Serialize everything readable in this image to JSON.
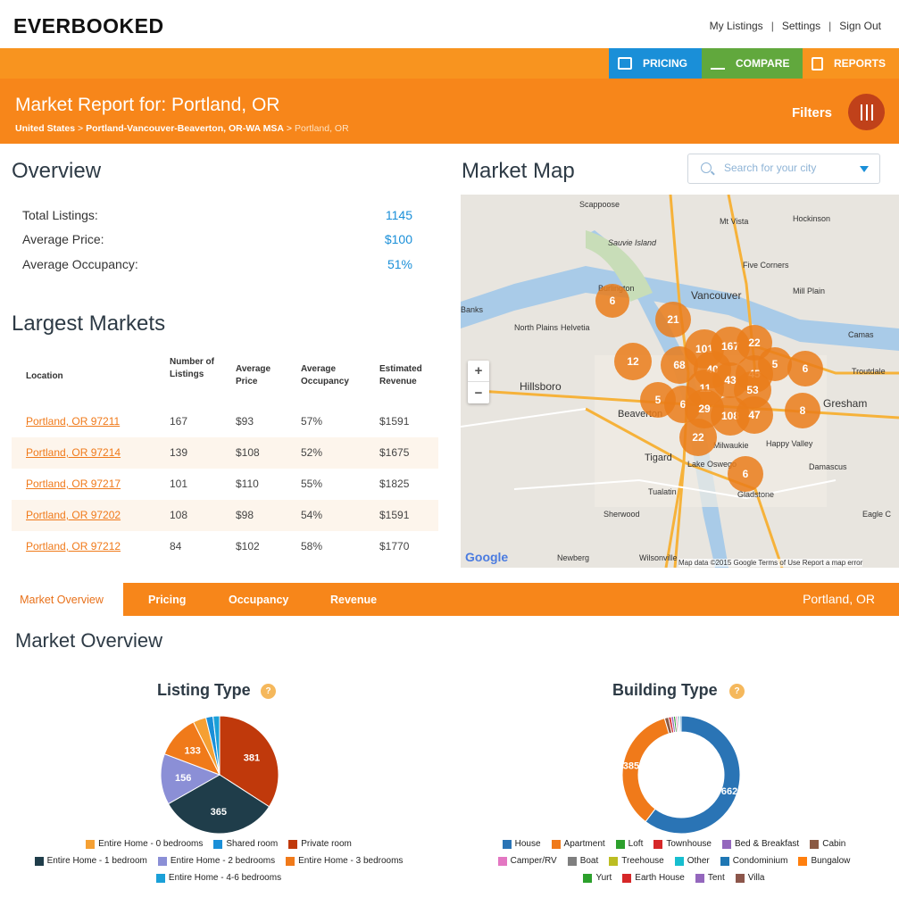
{
  "brand": "EVERBOOKED",
  "top_links": [
    "My Listings",
    "Settings",
    "Sign Out"
  ],
  "nav": {
    "pricing": "PRICING",
    "compare": "COMPARE",
    "reports": "REPORTS"
  },
  "header": {
    "title": "Market Report for: Portland, OR",
    "crumbs": [
      "United States",
      "Portland-Vancouver-Beaverton, OR-WA MSA",
      "Portland, OR"
    ],
    "filters": "Filters"
  },
  "overview": {
    "title": "Overview",
    "rows": [
      {
        "label": "Total Listings:",
        "value": "1145"
      },
      {
        "label": "Average Price:",
        "value": "$100"
      },
      {
        "label": "Average Occupancy:",
        "value": "51%"
      }
    ]
  },
  "largest": {
    "title": "Largest Markets",
    "headers": [
      "Location",
      "Number of Listings",
      "Average Price",
      "Average Occupancy",
      "Estimated Revenue"
    ],
    "rows": [
      [
        "Portland, OR 97211",
        "167",
        "$93",
        "57%",
        "$1591"
      ],
      [
        "Portland, OR 97214",
        "139",
        "$108",
        "52%",
        "$1675"
      ],
      [
        "Portland, OR 97217",
        "101",
        "$110",
        "55%",
        "$1825"
      ],
      [
        "Portland, OR 97202",
        "108",
        "$98",
        "54%",
        "$1591"
      ],
      [
        "Portland, OR 97212",
        "84",
        "$102",
        "58%",
        "$1770"
      ]
    ]
  },
  "map": {
    "title": "Market Map",
    "search_placeholder": "Search for your city",
    "google": "Google",
    "footer": "Map data ©2015 Google   Terms of Use   Report a map error",
    "labels": [
      "Scappoose",
      "Mt Vista",
      "Hockinson",
      "Sauvie Island",
      "Five Corners",
      "Burlington",
      "Vancouver",
      "Mill Plain",
      "Banks",
      "North Plains",
      "Helvetia",
      "Camas",
      "Troutdale",
      "Hillsboro",
      "Gresham",
      "Beaverton",
      "Happy Valley",
      "Tigard",
      "Milwaukie",
      "Lake Oswego",
      "Damascus",
      "Tualatin",
      "Gladstone",
      "Sherwood",
      "Eagle C",
      "Newberg",
      "Wilsonville"
    ],
    "clusters": [
      "6",
      "21",
      "101",
      "167",
      "22",
      "12",
      "68",
      "40",
      "45",
      "5",
      "6",
      "43",
      "11",
      "53",
      "5",
      "6",
      "29",
      "108",
      "47",
      "8",
      "22",
      "6"
    ]
  },
  "tabs": {
    "items": [
      "Market Overview",
      "Pricing",
      "Occupancy",
      "Revenue"
    ],
    "location": "Portland, OR"
  },
  "market_overview_title": "Market Overview",
  "listing_type": {
    "title": "Listing Type",
    "help": "?",
    "legend": [
      [
        "Entire Home - 0 bedrooms",
        "Shared room",
        "Private room"
      ],
      [
        "Entire Home - 1 bedroom",
        "Entire Home - 2 bedrooms",
        "Entire Home - 3 bedrooms"
      ],
      [
        "Entire Home - 4-6 bedrooms"
      ]
    ]
  },
  "building_type": {
    "title": "Building Type",
    "help": "?",
    "legend": [
      [
        "House",
        "Apartment",
        "Loft",
        "Townhouse",
        "Bed & Breakfast",
        "Cabin"
      ],
      [
        "Camper/RV",
        "Boat",
        "Treehouse",
        "Other",
        "Condominium",
        "Bungalow"
      ],
      [
        "Yurt",
        "Earth House",
        "Tent",
        "Villa"
      ]
    ]
  },
  "chart_data": [
    {
      "type": "pie",
      "title": "Listing Type",
      "series": [
        {
          "name": "Private room",
          "value": 381,
          "color": "#c0390b"
        },
        {
          "name": "Entire Home - 1 bedroom",
          "value": 365,
          "color": "#1f3d4a"
        },
        {
          "name": "Entire Home - 2 bedrooms",
          "value": 156,
          "color": "#8b8fd6"
        },
        {
          "name": "Entire Home - 3 bedrooms",
          "value": 133,
          "color": "#f07a1a"
        },
        {
          "name": "Entire Home - 0 bedrooms",
          "value": 40,
          "color": "#f5a033"
        },
        {
          "name": "Shared room",
          "value": 22,
          "color": "#1a8fd8"
        },
        {
          "name": "Entire Home - 4-6 bedrooms",
          "value": 20,
          "color": "#1aa0d8"
        }
      ],
      "data_labels": [
        "381",
        "365",
        "156",
        "133"
      ]
    },
    {
      "type": "pie",
      "title": "Building Type",
      "donut": true,
      "series": [
        {
          "name": "House",
          "value": 662,
          "color": "#2a74b5"
        },
        {
          "name": "Apartment",
          "value": 385,
          "color": "#f07a1a"
        },
        {
          "name": "Cabin",
          "value": 12,
          "color": "#8b5a44"
        },
        {
          "name": "Townhouse",
          "value": 8,
          "color": "#d62728"
        },
        {
          "name": "Bed & Breakfast",
          "value": 7,
          "color": "#9467bd"
        },
        {
          "name": "Loft",
          "value": 6,
          "color": "#2ca02c"
        },
        {
          "name": "Camper/RV",
          "value": 5,
          "color": "#e377c2"
        },
        {
          "name": "Boat",
          "value": 4,
          "color": "#7f7f7f"
        },
        {
          "name": "Other",
          "value": 4,
          "color": "#17becf"
        },
        {
          "name": "Condominium",
          "value": 4,
          "color": "#1f77b4"
        }
      ],
      "data_labels": [
        "662",
        "385"
      ]
    }
  ],
  "colors": {
    "orange": "#f7861a",
    "pricing_blue": "#1a8fd8",
    "compare_green": "#61a83d",
    "link_orange": "#f07a1a",
    "legend": {
      "Entire Home - 0 bedrooms": "#f5a033",
      "Shared room": "#1a8fd8",
      "Private room": "#c0390b",
      "Entire Home - 1 bedroom": "#1f3d4a",
      "Entire Home - 2 bedrooms": "#8b8fd6",
      "Entire Home - 3 bedrooms": "#f07a1a",
      "Entire Home - 4-6 bedrooms": "#1aa0d8",
      "House": "#2a74b5",
      "Apartment": "#f07a1a",
      "Loft": "#2ca02c",
      "Townhouse": "#d62728",
      "Bed & Breakfast": "#9467bd",
      "Cabin": "#8b5a44",
      "Camper/RV": "#e377c2",
      "Boat": "#7f7f7f",
      "Treehouse": "#bcbd22",
      "Other": "#17becf",
      "Condominium": "#1f77b4",
      "Bungalow": "#ff7f0e",
      "Yurt": "#2ca02c",
      "Earth House": "#d62728",
      "Tent": "#9467bd",
      "Villa": "#8c564b"
    }
  }
}
